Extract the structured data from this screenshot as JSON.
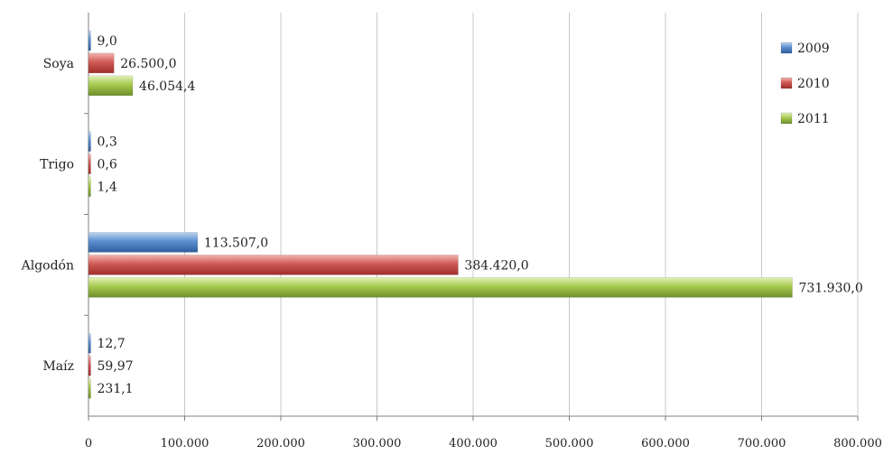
{
  "chart_data": {
    "type": "bar",
    "orientation": "horizontal",
    "title": "",
    "xlabel": "",
    "ylabel": "",
    "categories": [
      "Soya",
      "Trigo",
      "Algodón",
      "Maíz"
    ],
    "series": [
      {
        "name": "2009",
        "color": "#5b8fcf",
        "values": [
          9.0,
          0.3,
          113507.0,
          12.7
        ],
        "labels": [
          "9,0",
          "0,3",
          "113.507,0",
          "12,7"
        ]
      },
      {
        "name": "2010",
        "color": "#d05a55",
        "values": [
          26500.0,
          0.6,
          384420.0,
          59.97
        ],
        "labels": [
          "26.500,0",
          "0,6",
          "384.420,0",
          "59,97"
        ]
      },
      {
        "name": "2011",
        "color": "#a6c94e",
        "values": [
          46054.4,
          1.4,
          731930.0,
          231.1
        ],
        "labels": [
          "46.054,4",
          "1,4",
          "731.930,0",
          "231,1"
        ]
      }
    ],
    "xlim": [
      0,
      800000
    ],
    "x_ticks": [
      0,
      100000,
      200000,
      300000,
      400000,
      500000,
      600000,
      700000,
      800000
    ],
    "x_tick_labels": [
      "0",
      "100.000",
      "200.000",
      "300.000",
      "400.000",
      "500.000",
      "600.000",
      "700.000",
      "800.000"
    ],
    "grid": "vertical",
    "legend_position": "top-right"
  }
}
